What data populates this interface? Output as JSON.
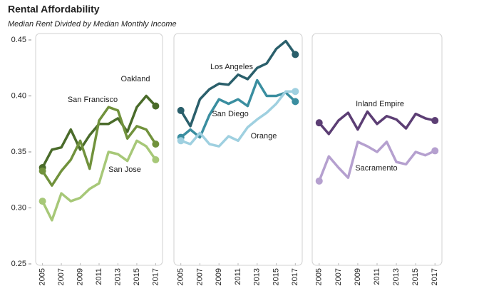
{
  "title": "Rental Affordability",
  "subtitle": "Median Rent Divided by Median Monthly Income",
  "chart_data": [
    {
      "type": "line",
      "x": [
        2005,
        2006,
        2007,
        2008,
        2009,
        2010,
        2011,
        2012,
        2013,
        2014,
        2015,
        2016,
        2017
      ],
      "xlim": [
        2004.5,
        2017.5
      ],
      "xticks": [
        2005,
        2007,
        2009,
        2011,
        2013,
        2015,
        2017
      ],
      "ylim": [
        0.25,
        0.45
      ],
      "yticks": [
        0.25,
        {
          "value": 0.3,
          "label": "0.30"
        },
        0.35,
        {
          "value": 0.4,
          "label": "0.40"
        },
        0.45
      ],
      "series": [
        {
          "name": "Oakland",
          "color": "#4a6b2a",
          "values": [
            0.336,
            0.352,
            0.354,
            0.37,
            0.352,
            0.365,
            0.375,
            0.375,
            0.38,
            0.368,
            0.39,
            0.4,
            0.391
          ]
        },
        {
          "name": "San Francisco",
          "color": "#71923c",
          "values": [
            0.333,
            0.32,
            0.333,
            0.343,
            0.36,
            0.335,
            0.378,
            0.39,
            0.387,
            0.362,
            0.373,
            0.37,
            0.357
          ]
        },
        {
          "name": "San Jose",
          "color": "#a7c878",
          "values": [
            0.306,
            0.289,
            0.313,
            0.306,
            0.309,
            0.317,
            0.322,
            0.35,
            0.348,
            0.342,
            0.36,
            0.355,
            0.343
          ]
        }
      ]
    },
    {
      "type": "line",
      "x": [
        2005,
        2006,
        2007,
        2008,
        2009,
        2010,
        2011,
        2012,
        2013,
        2014,
        2015,
        2016,
        2017
      ],
      "xlim": [
        2004.5,
        2017.5
      ],
      "xticks": [
        2005,
        2007,
        2009,
        2011,
        2013,
        2015,
        2017
      ],
      "ylim": [
        0.25,
        0.45
      ],
      "series": [
        {
          "name": "Los Angeles",
          "color": "#2a5f6b",
          "values": [
            0.387,
            0.373,
            0.397,
            0.406,
            0.411,
            0.41,
            0.419,
            0.415,
            0.425,
            0.429,
            0.442,
            0.449,
            0.437
          ]
        },
        {
          "name": "San Diego",
          "color": "#3a8ea0",
          "values": [
            0.363,
            0.37,
            0.363,
            0.383,
            0.397,
            0.393,
            0.397,
            0.391,
            0.414,
            0.4,
            0.4,
            0.403,
            0.395
          ]
        },
        {
          "name": "Orange",
          "color": "#9fd0e0",
          "values": [
            0.36,
            0.357,
            0.367,
            0.357,
            0.355,
            0.364,
            0.36,
            0.372,
            0.379,
            0.385,
            0.393,
            0.404,
            0.404
          ]
        }
      ]
    },
    {
      "type": "line",
      "x": [
        2005,
        2006,
        2007,
        2008,
        2009,
        2010,
        2011,
        2012,
        2013,
        2014,
        2015,
        2016,
        2017
      ],
      "xlim": [
        2004.5,
        2017.5
      ],
      "xticks": [
        2005,
        2007,
        2009,
        2011,
        2013,
        2015,
        2017
      ],
      "ylim": [
        0.25,
        0.45
      ],
      "series": [
        {
          "name": "Inland Empire",
          "color": "#5c3e74",
          "values": [
            0.376,
            0.366,
            0.378,
            0.385,
            0.37,
            0.386,
            0.375,
            0.382,
            0.379,
            0.371,
            0.384,
            0.38,
            0.378
          ]
        },
        {
          "name": "Sacramento",
          "color": "#b5a0cf",
          "values": [
            0.324,
            0.346,
            0.336,
            0.327,
            0.359,
            0.355,
            0.35,
            0.359,
            0.341,
            0.339,
            0.35,
            0.347,
            0.351
          ]
        }
      ]
    }
  ]
}
